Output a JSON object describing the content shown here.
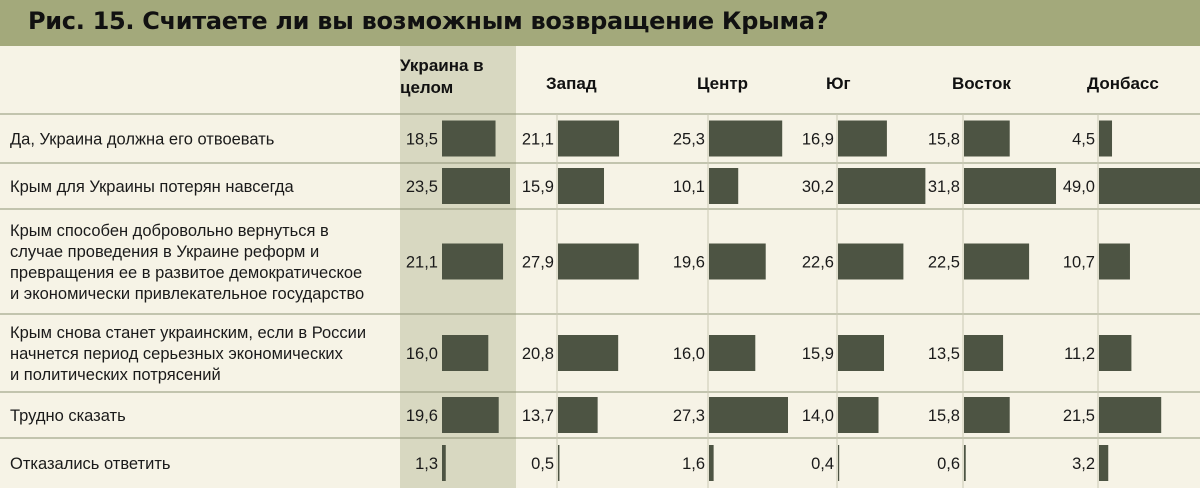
{
  "title": "Рис. 15. Считаете ли вы возможным возвращение Крыма?",
  "colors": {
    "background": "#f6f3e6",
    "title_bar": "#a3a97b",
    "highlight_column": "#d8d8c1",
    "bar": "#4d5443",
    "separator": "#8f9476"
  },
  "chart_data": {
    "type": "bar",
    "orientation": "horizontal",
    "title": "Рис. 15. Считаете ли вы возможным возвращение Крыма?",
    "columns": [
      "Украина в целом",
      "Запад",
      "Центр",
      "Юг",
      "Восток",
      "Донбасс"
    ],
    "column_header_lines": [
      [
        "Украина в",
        "целом"
      ],
      [
        "Запад"
      ],
      [
        "Центр"
      ],
      [
        "Юг"
      ],
      [
        "Восток"
      ],
      [
        "Донбасс"
      ]
    ],
    "highlighted_column": "Украина в целом",
    "rows": [
      {
        "label_lines": [
          "Да, Украина должна его отвоевать"
        ],
        "values": [
          18.5,
          21.1,
          25.3,
          16.9,
          15.8,
          4.5
        ],
        "value_labels": [
          "18,5",
          "21,1",
          "25,3",
          "16,9",
          "15,8",
          "4,5"
        ]
      },
      {
        "label_lines": [
          "Крым для Украины потерян навсегда"
        ],
        "values": [
          23.5,
          15.9,
          10.1,
          30.2,
          31.8,
          49.0
        ],
        "value_labels": [
          "23,5",
          "15,9",
          "10,1",
          "30,2",
          "31,8",
          "49,0"
        ]
      },
      {
        "label_lines": [
          "Крым способен добровольно вернуться в",
          "случае проведения в Украине реформ и",
          "превращения ее в развитое демократическое",
          "и экономически привлекательное государство"
        ],
        "values": [
          21.1,
          27.9,
          19.6,
          22.6,
          22.5,
          10.7
        ],
        "value_labels": [
          "21,1",
          "27,9",
          "19,6",
          "22,6",
          "22,5",
          "10,7"
        ]
      },
      {
        "label_lines": [
          "Крым снова станет украинским, если в России",
          "начнется период серьезных экономических",
          "и политических потрясений"
        ],
        "values": [
          16.0,
          20.8,
          16.0,
          15.9,
          13.5,
          11.2
        ],
        "value_labels": [
          "16,0",
          "20,8",
          "16,0",
          "15,9",
          "13,5",
          "11,2"
        ]
      },
      {
        "label_lines": [
          "Трудно сказать"
        ],
        "values": [
          19.6,
          13.7,
          27.3,
          14.0,
          15.8,
          21.5
        ],
        "value_labels": [
          "19,6",
          "13,7",
          "27,3",
          "14,0",
          "15,8",
          "21,5"
        ]
      },
      {
        "label_lines": [
          "Отказались ответить"
        ],
        "values": [
          1.3,
          0.5,
          1.6,
          0.4,
          0.6,
          3.2
        ],
        "value_labels": [
          "1,3",
          "0,5",
          "1,6",
          "0,4",
          "0,6",
          "3,2"
        ]
      }
    ]
  }
}
